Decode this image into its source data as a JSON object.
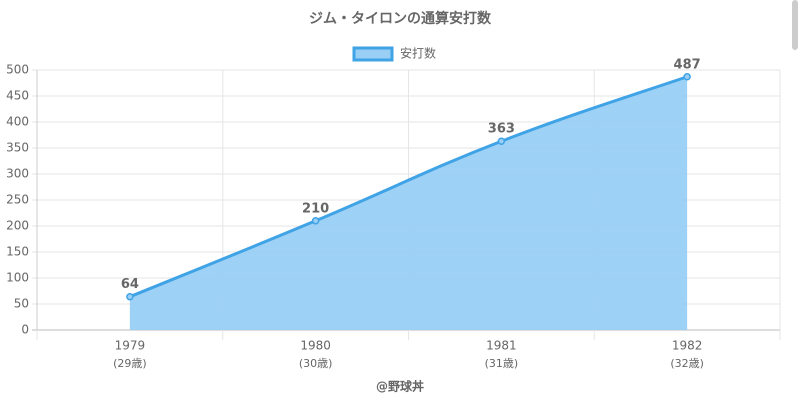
{
  "chart_data": {
    "type": "line",
    "title": "ジム・タイロンの通算安打数",
    "categories": [
      "1979",
      "1980",
      "1981",
      "1982"
    ],
    "category_notes": [
      "(29歳)",
      "(30歳)",
      "(31歳)",
      "(32歳)"
    ],
    "series": [
      {
        "name": "安打数",
        "color": "#3fa3e6",
        "fill": "#99cff5",
        "values": [
          64,
          210,
          363,
          487
        ]
      }
    ],
    "ylim": [
      0,
      500
    ],
    "yticks": [
      0,
      50,
      100,
      150,
      200,
      250,
      300,
      350,
      400,
      450,
      500
    ],
    "grid": true,
    "legend": "top",
    "credit": "@野球丼"
  }
}
